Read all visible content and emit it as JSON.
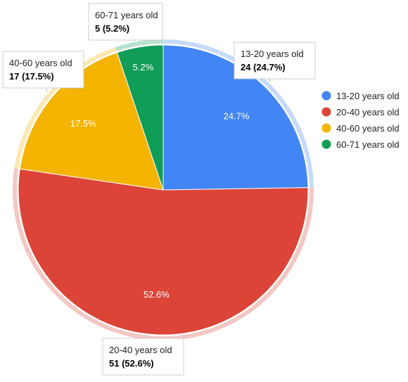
{
  "chart_data": {
    "type": "pie",
    "categories": [
      "13-20 years old",
      "20-40 years old",
      "40-60 years old",
      "60-71 years old"
    ],
    "values": [
      24,
      51,
      17,
      5
    ],
    "percent_labels": [
      "24.7%",
      "52.6%",
      "17.5%",
      "5.2%"
    ],
    "tooltips": [
      {
        "label": "13-20 years old",
        "value": "24 (24.7%)"
      },
      {
        "label": "20-40 years old",
        "value": "51 (52.6%)"
      },
      {
        "label": "40-60 years old",
        "value": "17 (17.5%)"
      },
      {
        "label": "60-71 years old",
        "value": "5 (5.2%)"
      }
    ],
    "colors": [
      "#4285f4",
      "#db4437",
      "#f4b400",
      "#0f9d58"
    ],
    "legend_position": "right"
  }
}
